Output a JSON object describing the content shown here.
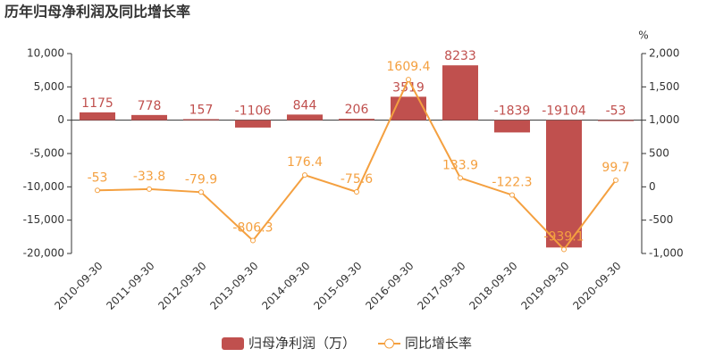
{
  "chart_data": {
    "type": "bar",
    "title": "历年归母净利润及同比增长率",
    "y2_unit": "%",
    "categories": [
      "2010-09-30",
      "2011-09-30",
      "2012-09-30",
      "2013-09-30",
      "2014-09-30",
      "2015-09-30",
      "2016-09-30",
      "2017-09-30",
      "2018-09-30",
      "2019-09-30",
      "2020-09-30"
    ],
    "series": [
      {
        "name": "归母净利润（万）",
        "type": "bar",
        "color": "#c0504e",
        "values": [
          1175,
          778,
          157,
          -1106,
          844,
          206,
          3519,
          8233,
          -1839,
          -19104,
          -53
        ]
      },
      {
        "name": "同比增长率",
        "type": "line",
        "axis": "y2",
        "color": "#f4a040",
        "values": [
          -53,
          -33.8,
          -79.9,
          -806.3,
          176.4,
          -75.6,
          1609.4,
          133.9,
          -122.3,
          -939.1,
          99.7
        ]
      }
    ],
    "ylim": [
      -20000,
      10000
    ],
    "yticks": [
      {
        "value": -20000,
        "label": "-20,000"
      },
      {
        "value": -15000,
        "label": "-15,000"
      },
      {
        "value": -10000,
        "label": "-10,000"
      },
      {
        "value": -5000,
        "label": "-5,000"
      },
      0,
      {
        "value": 5000,
        "label": "5,000"
      },
      {
        "value": 10000,
        "label": "10,000"
      }
    ],
    "y2lim": [
      -1000,
      2000
    ],
    "y2ticks": [
      {
        "value": -1000,
        "label": "-1,000"
      },
      -500,
      0,
      500,
      {
        "value": 1000,
        "label": "1,000"
      },
      {
        "value": 1500,
        "label": "1,500"
      },
      {
        "value": 2000,
        "label": "2,000"
      }
    ],
    "grid": false
  }
}
